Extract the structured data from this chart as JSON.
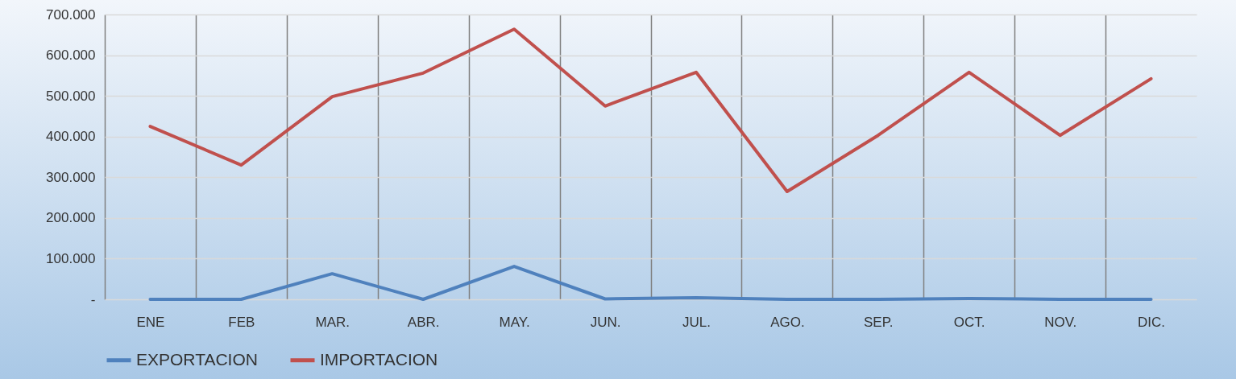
{
  "chart_data": {
    "type": "line",
    "categories": [
      "ENE",
      "FEB",
      "MAR.",
      "ABR.",
      "MAY.",
      "JUN.",
      "JUL.",
      "AGO.",
      "SEP.",
      "OCT.",
      "NOV.",
      "DIC."
    ],
    "series": [
      {
        "name": "EXPORTACION",
        "color": "#4f81bd",
        "values": [
          0,
          0,
          63000,
          0,
          81000,
          1000,
          4000,
          0,
          0,
          2000,
          0,
          0
        ]
      },
      {
        "name": "IMPORTACION",
        "color": "#c0504d",
        "values": [
          425000,
          330000,
          498000,
          556000,
          664000,
          475000,
          558000,
          265000,
          403000,
          558000,
          403000,
          542000
        ]
      }
    ],
    "ylim": [
      0,
      700000
    ],
    "yticks": [
      {
        "value": 0,
        "label": "-"
      },
      {
        "value": 100000,
        "label": "100.000"
      },
      {
        "value": 200000,
        "label": "200.000"
      },
      {
        "value": 300000,
        "label": "300.000"
      },
      {
        "value": 400000,
        "label": "400.000"
      },
      {
        "value": 500000,
        "label": "500.000"
      },
      {
        "value": 600000,
        "label": "600.000"
      },
      {
        "value": 700000,
        "label": "700.000"
      }
    ],
    "grid": true,
    "legend": "bottom",
    "marker": "none",
    "line_style": "solid"
  }
}
